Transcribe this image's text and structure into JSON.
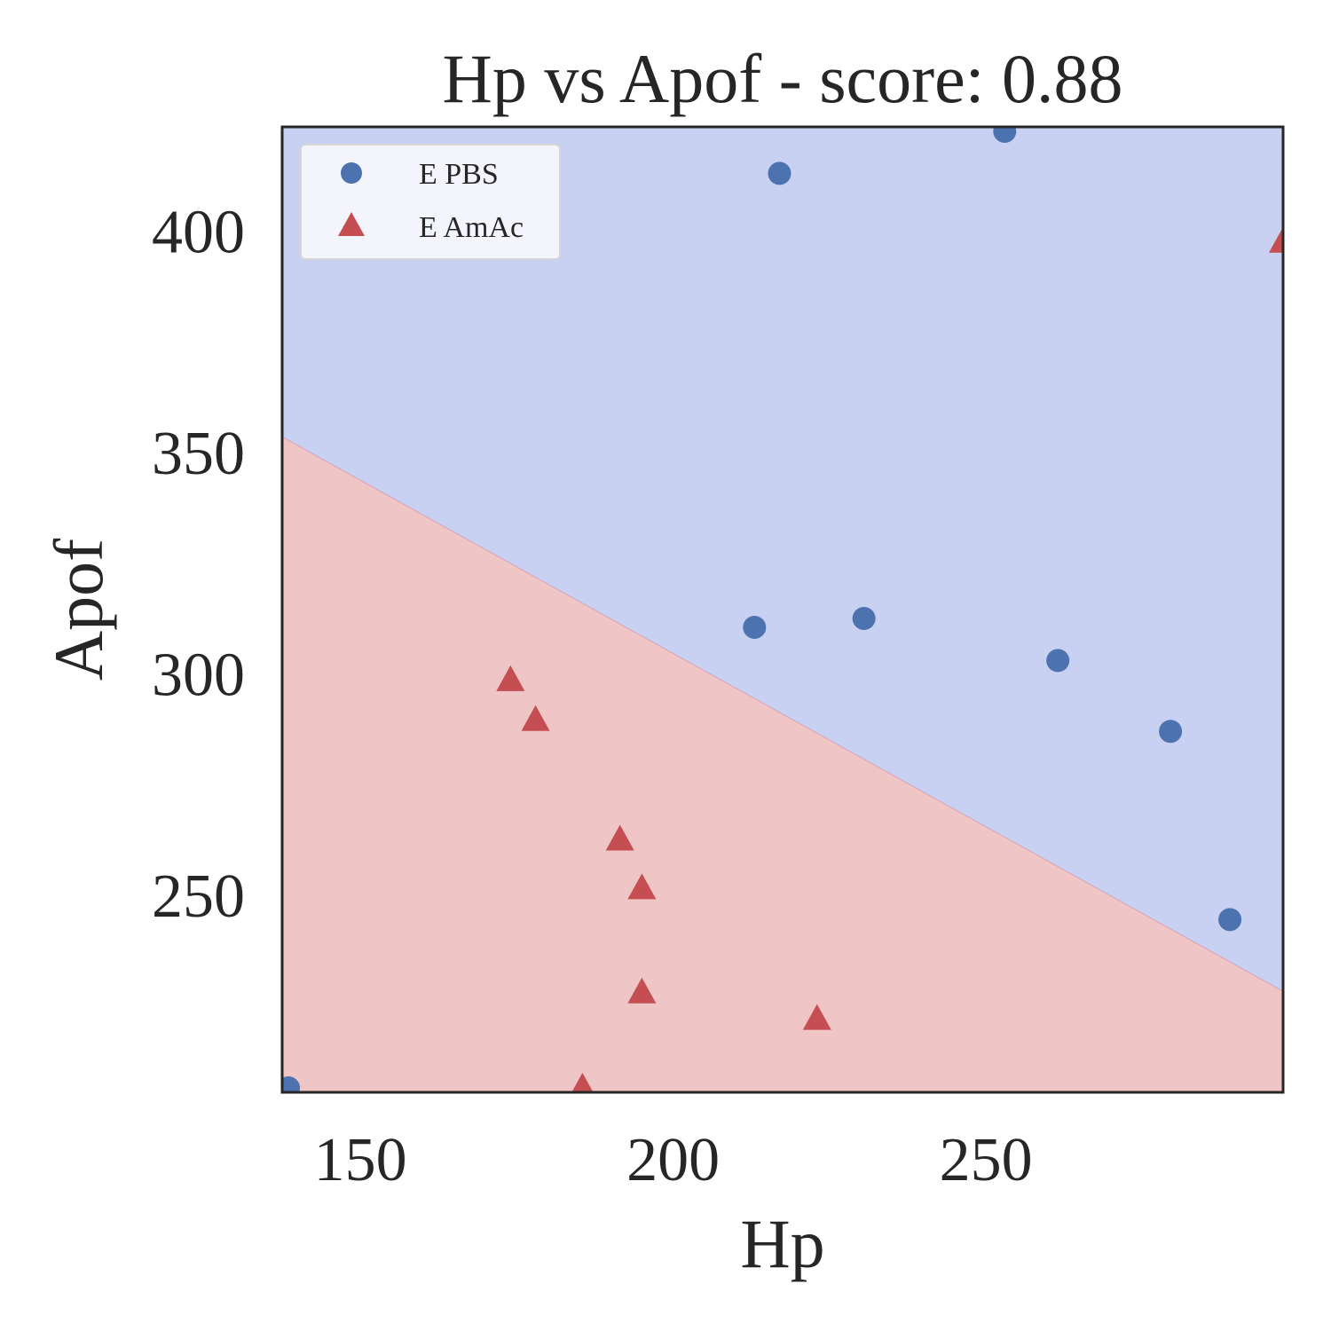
{
  "chart_data": {
    "type": "scatter",
    "title": "Hp vs Apof - score: 0.88",
    "xlabel": "Hp",
    "ylabel": "Apof",
    "xlim": [
      137.5,
      297.5
    ],
    "ylim": [
      205.5,
      423.5
    ],
    "xticks": [
      150,
      200,
      250
    ],
    "yticks": [
      250,
      300,
      350,
      400
    ],
    "grid": false,
    "legend_position": "top-left",
    "regions": [
      {
        "name": "E PBS",
        "color": "#c8d1f2"
      },
      {
        "name": "E AmAc",
        "color": "#efc5c5"
      }
    ],
    "decision_boundary": {
      "x": [
        137.5,
        297.5
      ],
      "y": [
        353.5,
        228.3
      ]
    },
    "series": [
      {
        "name": "E PBS",
        "marker": "circle",
        "color": "#4c72b0",
        "points": [
          [
            138.5,
            206.5
          ],
          [
            213,
            310.5
          ],
          [
            217,
            413
          ],
          [
            230.5,
            312.5
          ],
          [
            253,
            422.5
          ],
          [
            261.5,
            303
          ],
          [
            279.5,
            287
          ],
          [
            289,
            244.5
          ]
        ]
      },
      {
        "name": "E AmAc",
        "marker": "triangle",
        "color": "#c44e52",
        "points": [
          [
            174,
            298.5
          ],
          [
            178,
            289.5
          ],
          [
            185.5,
            206.5
          ],
          [
            191.5,
            262.5
          ],
          [
            195,
            251.5
          ],
          [
            195,
            228
          ],
          [
            223,
            222
          ],
          [
            297.5,
            397.5
          ]
        ]
      }
    ]
  }
}
